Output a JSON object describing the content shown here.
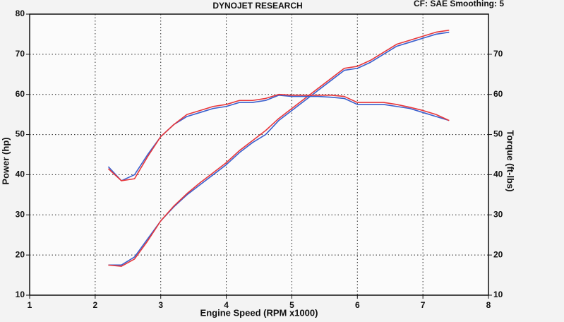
{
  "chart_data": {
    "type": "line",
    "title": "DYNOJET RESEARCH",
    "subtitle": "CF: SAE  Smoothing: 5",
    "x_label": "Engine Speed (RPM x1000)",
    "y_label": "Power (hp)",
    "y2_label": "Torque (ft-lbs)",
    "xlim": [
      1,
      8
    ],
    "xticks": [
      1,
      2,
      3,
      4,
      5,
      6,
      7,
      8
    ],
    "ylim": [
      10,
      80
    ],
    "yticks": [
      10,
      20,
      30,
      40,
      50,
      60,
      70,
      80
    ],
    "y2lim": [
      10,
      80
    ],
    "y2ticks": [
      10,
      20,
      30,
      40,
      50,
      60,
      70
    ],
    "grid": true,
    "x": [
      2.2,
      2.4,
      2.6,
      2.8,
      3.0,
      3.2,
      3.4,
      3.6,
      3.8,
      4.0,
      4.2,
      4.4,
      4.6,
      4.8,
      5.0,
      5.2,
      5.4,
      5.6,
      5.8,
      6.0,
      6.2,
      6.4,
      6.6,
      6.8,
      7.0,
      7.2,
      7.4
    ],
    "series": [
      {
        "color": "#3a5fcd",
        "values": [
          17.5,
          17.5,
          19.5,
          24,
          28.5,
          32,
          35,
          37.5,
          40,
          42.5,
          45.5,
          48,
          50,
          53.5,
          56,
          58.5,
          61,
          63.5,
          66,
          66.5,
          68,
          70,
          72,
          73,
          74,
          75,
          75.5
        ]
      },
      {
        "color": "#e8363a",
        "values": [
          17.5,
          17.2,
          19,
          23.5,
          28.5,
          32.2,
          35.3,
          38,
          40.5,
          43,
          46,
          48.5,
          51,
          54,
          56.5,
          59,
          61.5,
          64,
          66.5,
          67,
          68.5,
          70.5,
          72.5,
          73.5,
          74.5,
          75.5,
          76
        ]
      },
      {
        "color": "#3a5fcd",
        "axis": "y2",
        "values": [
          42,
          38.5,
          40,
          45,
          49.5,
          52.5,
          54.5,
          55.5,
          56.5,
          57,
          58,
          58,
          58.5,
          59.8,
          59.5,
          59.5,
          59.5,
          59.3,
          59,
          57.5,
          57.5,
          57.5,
          57,
          56.5,
          55.5,
          54.5,
          53.5
        ]
      },
      {
        "color": "#e8363a",
        "axis": "y2",
        "values": [
          41.5,
          38.5,
          39,
          44.5,
          49.5,
          52.5,
          55,
          56,
          57,
          57.5,
          58.5,
          58.5,
          59,
          60,
          59.8,
          59.8,
          59.8,
          59.8,
          59.5,
          58,
          58,
          58,
          57.5,
          56.8,
          56,
          55,
          53.5
        ]
      }
    ]
  }
}
